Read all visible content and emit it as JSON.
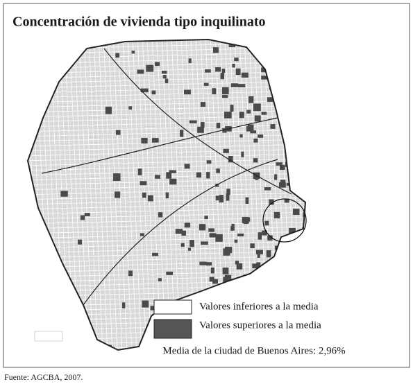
{
  "title": "Concentración de vivienda tipo inquilinato",
  "legend": [
    {
      "label": "Valores inferiores a la media"
    },
    {
      "label": "Valores superiores a la media"
    }
  ],
  "mean_note": "Media de la ciudad de Buenos Aires: 2,96%",
  "source": "Fuente: AGCBA, 2007."
}
